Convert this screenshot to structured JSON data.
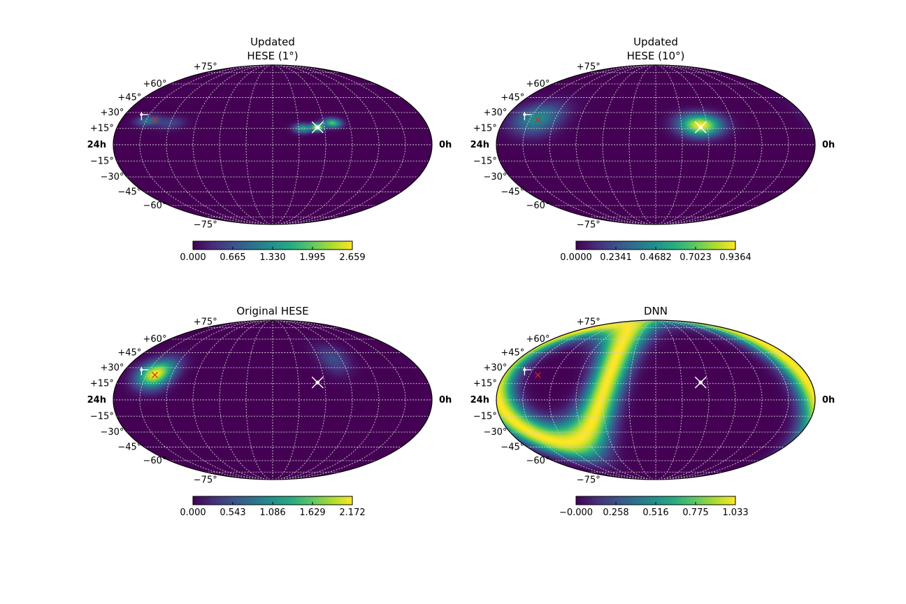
{
  "figure": {
    "colormap": [
      "#440154",
      "#472d7b",
      "#3b528b",
      "#2c728e",
      "#21918c",
      "#28ae80",
      "#5ec962",
      "#addc30",
      "#fde725"
    ],
    "grid_color": "#cfcfcf",
    "markers": {
      "reference_cross_color": "#ffffff",
      "red_x_color": "#d62728"
    }
  },
  "chart_data": [
    {
      "type": "heatmap",
      "projection": "mollweide",
      "title_lines": [
        "Updated",
        "HESE (1°)"
      ],
      "ra_labels": {
        "left": "24h",
        "right": "0h"
      },
      "lat_labels": [
        "+75°",
        "+60°",
        "+45°",
        "+30°",
        "+15°",
        "−15°",
        "−30°",
        "−45°",
        "−60°",
        "−75°"
      ],
      "colorbar": {
        "min": 0,
        "max": 2.659,
        "ticks": [
          "0.000",
          "0.665",
          "1.330",
          "1.995",
          "2.659"
        ]
      },
      "hotspots": [
        {
          "lon": -52,
          "lat": 16,
          "slon": 4.5,
          "slat": 2.4,
          "amp": 2.659
        },
        {
          "lon": -70,
          "lat": 20,
          "slon": 7,
          "slat": 3,
          "amp": 1.9
        },
        {
          "lon": -35,
          "lat": 15,
          "slon": 7,
          "slat": 3,
          "amp": 1.5
        },
        {
          "lon": 148,
          "lat": 22,
          "slon": 9,
          "slat": 3.5,
          "amp": 0.95
        },
        {
          "lon": 120,
          "lat": 20,
          "slon": 11,
          "slat": 4,
          "amp": 0.55
        }
      ],
      "markers": [
        {
          "kind": "cross",
          "lon": -52,
          "lat": 16
        },
        {
          "kind": "arrow",
          "lon": 160,
          "lat": 28
        },
        {
          "kind": "x",
          "lon": 140,
          "lat": 23
        }
      ]
    },
    {
      "type": "heatmap",
      "projection": "mollweide",
      "title_lines": [
        "Updated",
        "HESE (10°)"
      ],
      "ra_labels": {
        "left": "24h",
        "right": "0h"
      },
      "lat_labels": [
        "+75°",
        "+60°",
        "+45°",
        "+30°",
        "+15°",
        "−15°",
        "−30°",
        "−45°",
        "−60°",
        "−75°"
      ],
      "colorbar": {
        "min": 0,
        "max": 0.9364,
        "ticks": [
          "0.0000",
          "0.2341",
          "0.4682",
          "0.7023",
          "0.9364"
        ]
      },
      "hotspots": [
        {
          "lon": -52,
          "lat": 18,
          "slon": 16,
          "slat": 7,
          "amp": 0.9364
        },
        {
          "lon": 142,
          "lat": 24,
          "slon": 18,
          "slat": 10,
          "amp": 0.45
        }
      ],
      "markers": [
        {
          "kind": "cross",
          "lon": -52,
          "lat": 16
        },
        {
          "kind": "arrow",
          "lon": 160,
          "lat": 28
        },
        {
          "kind": "x",
          "lon": 140,
          "lat": 23
        }
      ]
    },
    {
      "type": "heatmap",
      "projection": "mollweide",
      "title_lines": [
        "Original HESE"
      ],
      "ra_labels": {
        "left": "24h",
        "right": "0h"
      },
      "lat_labels": [
        "+75°",
        "+60°",
        "+45°",
        "+30°",
        "+15°",
        "−15°",
        "−30°",
        "−45°",
        "−60°",
        "−75°"
      ],
      "colorbar": {
        "min": 0,
        "max": 2.172,
        "ticks": [
          "0.000",
          "0.543",
          "1.086",
          "1.629",
          "2.172"
        ]
      },
      "hotspots": [
        {
          "lon": 140,
          "lat": 24,
          "slon": 13,
          "slat": 9,
          "amp": 2.172
        },
        {
          "lon": -80,
          "lat": 38,
          "slon": 11,
          "slat": 10,
          "amp": 0.5
        }
      ],
      "markers": [
        {
          "kind": "cross",
          "lon": -52,
          "lat": 16
        },
        {
          "kind": "arrow",
          "lon": 160,
          "lat": 28
        },
        {
          "kind": "x",
          "lon": 140,
          "lat": 23
        }
      ]
    },
    {
      "type": "heatmap",
      "projection": "mollweide",
      "title_lines": [
        "DNN"
      ],
      "ra_labels": {
        "left": "24h",
        "right": "0h"
      },
      "lat_labels": [
        "+75°",
        "+60°",
        "+45°",
        "+30°",
        "+15°",
        "−15°",
        "−30°",
        "−45°",
        "−60°",
        "−75°"
      ],
      "colorbar": {
        "min": 0,
        "max": 1.033,
        "ticks": [
          "−0.000",
          "0.258",
          "0.516",
          "0.775",
          "1.033"
        ]
      },
      "ring": {
        "center_lon": -60,
        "center_lat": -20,
        "radius": 120,
        "width": 13,
        "amp": 1.033
      },
      "markers": [
        {
          "kind": "cross",
          "lon": -52,
          "lat": 16
        },
        {
          "kind": "arrow",
          "lon": 160,
          "lat": 28
        },
        {
          "kind": "x",
          "lon": 140,
          "lat": 23
        }
      ]
    }
  ]
}
